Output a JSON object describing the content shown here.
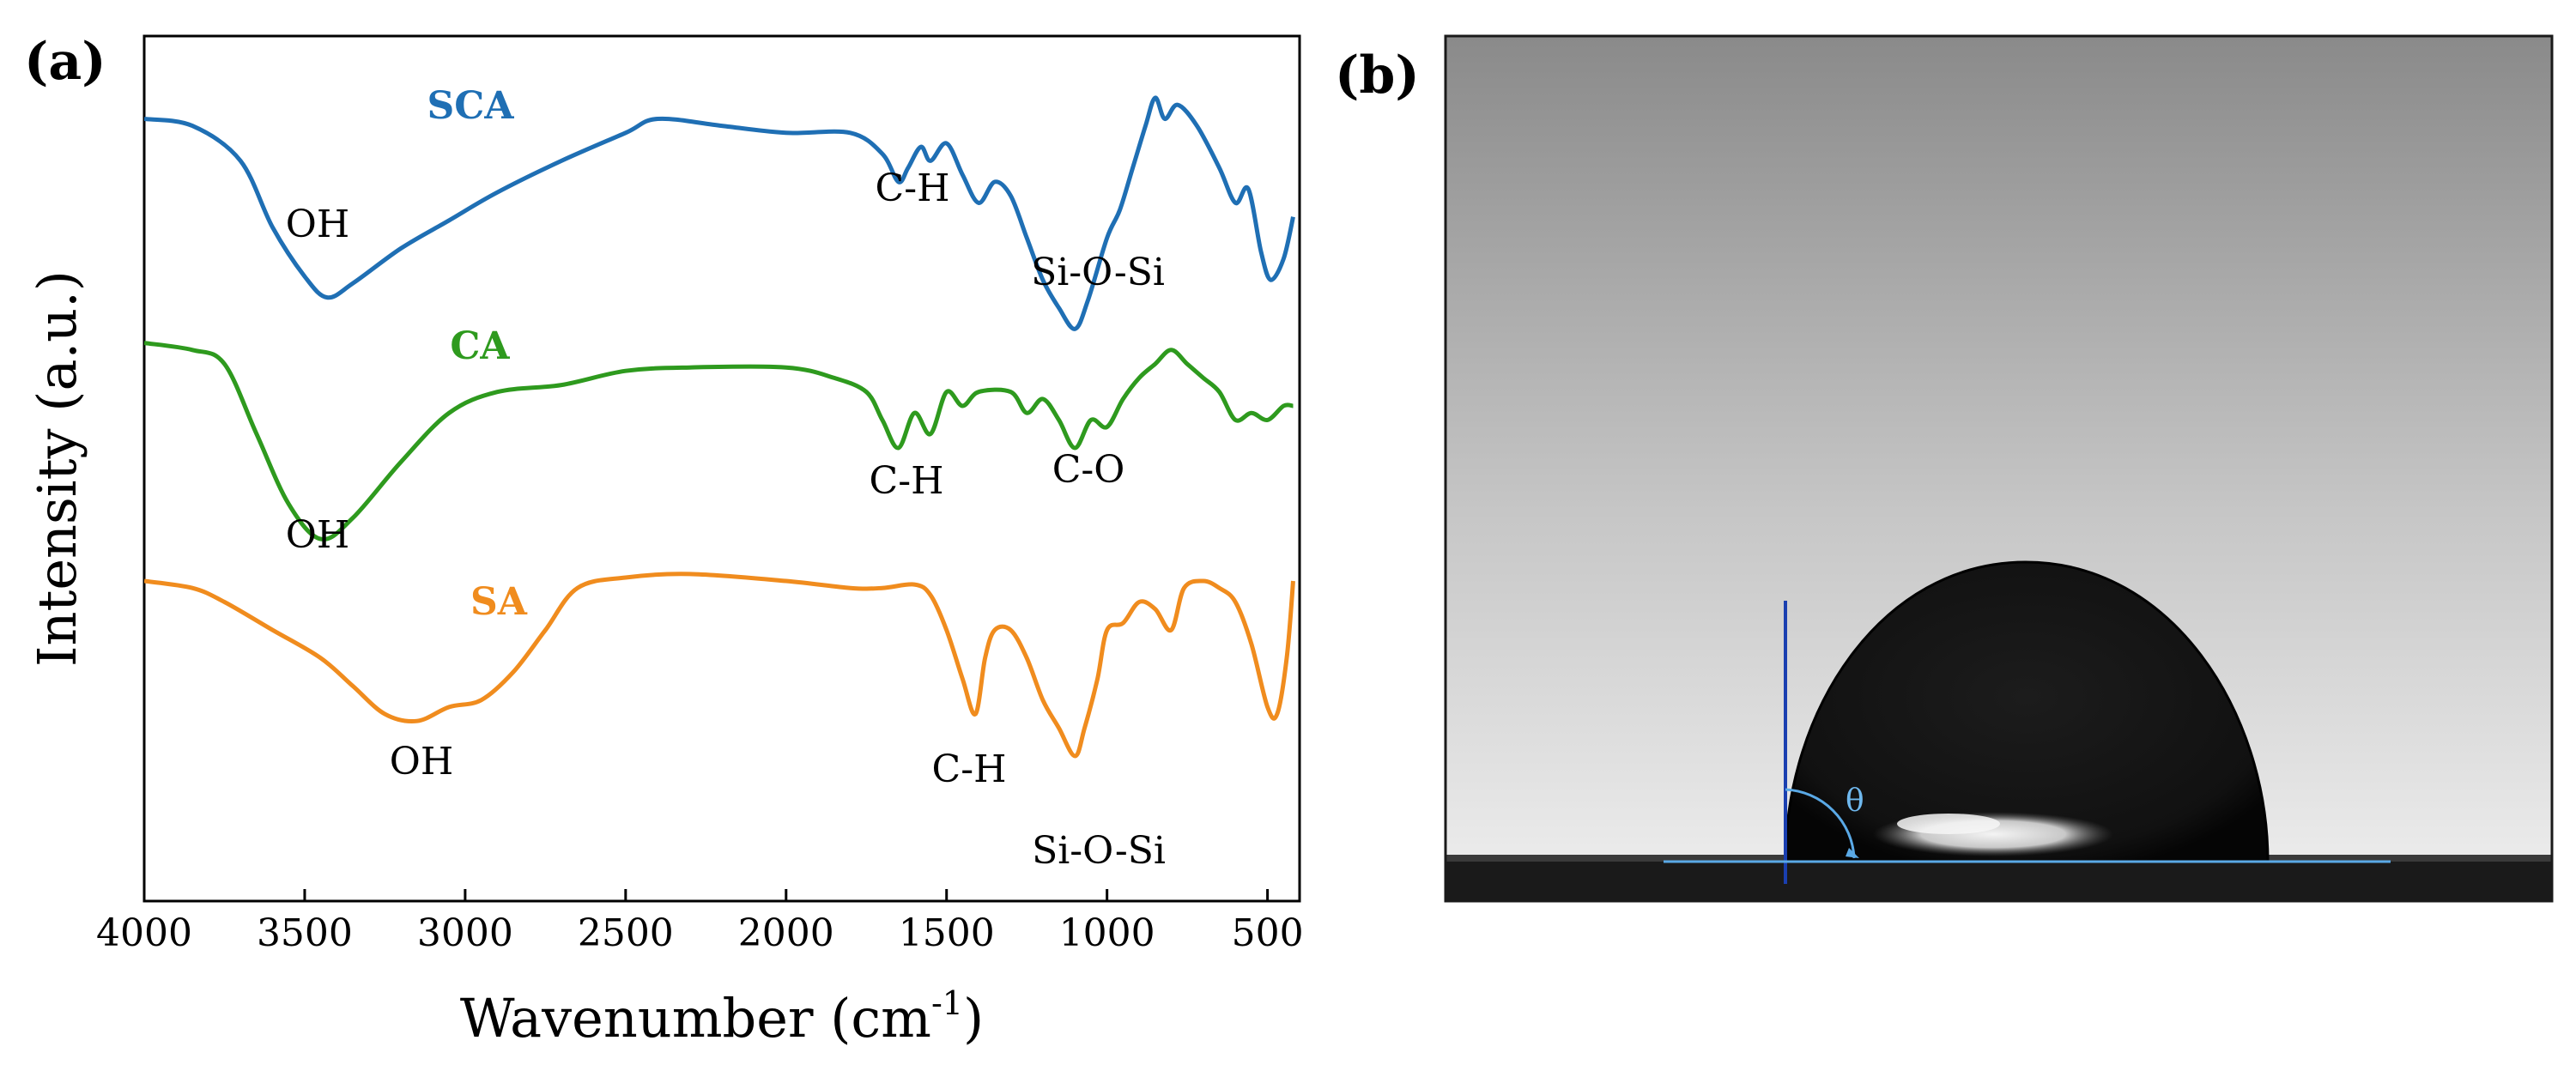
{
  "panel_a": {
    "label": "(a)",
    "chart_data": {
      "type": "line",
      "title": "",
      "xlabel_main": "Wavenumber (cm",
      "xlabel_sup": "-1",
      "xlabel_close": ")",
      "ylabel": "Intensity (a.u.)",
      "xlim": [
        4000,
        400
      ],
      "x_ticks": [
        "4000",
        "3500",
        "3000",
        "2500",
        "2000",
        "1500",
        "1000",
        "500"
      ],
      "x_tick_values": [
        4000,
        3500,
        3000,
        2500,
        2000,
        1500,
        1000,
        500
      ],
      "yaxis_tick_labels": false,
      "series": [
        {
          "name": "SCA",
          "color": "#1f6fb4",
          "points": [
            [
              4000,
              0.03
            ],
            [
              3850,
              0.04
            ],
            [
              3700,
              0.09
            ],
            [
              3600,
              0.185
            ],
            [
              3500,
              0.255
            ],
            [
              3430,
              0.285
            ],
            [
              3350,
              0.265
            ],
            [
              3200,
              0.215
            ],
            [
              3050,
              0.175
            ],
            [
              2900,
              0.135
            ],
            [
              2700,
              0.09
            ],
            [
              2500,
              0.05
            ],
            [
              2400,
              0.03
            ],
            [
              2200,
              0.04
            ],
            [
              2000,
              0.05
            ],
            [
              1800,
              0.05
            ],
            [
              1700,
              0.08
            ],
            [
              1650,
              0.12
            ],
            [
              1620,
              0.1
            ],
            [
              1580,
              0.07
            ],
            [
              1550,
              0.09
            ],
            [
              1500,
              0.065
            ],
            [
              1450,
              0.11
            ],
            [
              1400,
              0.15
            ],
            [
              1350,
              0.12
            ],
            [
              1300,
              0.14
            ],
            [
              1250,
              0.2
            ],
            [
              1200,
              0.26
            ],
            [
              1150,
              0.3
            ],
            [
              1100,
              0.33
            ],
            [
              1060,
              0.29
            ],
            [
              1000,
              0.2
            ],
            [
              960,
              0.16
            ],
            [
              920,
              0.1
            ],
            [
              880,
              0.04
            ],
            [
              850,
              0.0
            ],
            [
              820,
              0.03
            ],
            [
              780,
              0.01
            ],
            [
              720,
              0.04
            ],
            [
              650,
              0.1
            ],
            [
              600,
              0.15
            ],
            [
              560,
              0.13
            ],
            [
              520,
              0.22
            ],
            [
              490,
              0.26
            ],
            [
              450,
              0.23
            ],
            [
              420,
              0.17
            ]
          ]
        },
        {
          "name": "CA",
          "color": "#2e9a1e",
          "points": [
            [
              4000,
              0.35
            ],
            [
              3850,
              0.36
            ],
            [
              3750,
              0.38
            ],
            [
              3650,
              0.48
            ],
            [
              3550,
              0.58
            ],
            [
              3450,
              0.63
            ],
            [
              3350,
              0.6
            ],
            [
              3200,
              0.52
            ],
            [
              3050,
              0.45
            ],
            [
              2900,
              0.42
            ],
            [
              2700,
              0.41
            ],
            [
              2500,
              0.39
            ],
            [
              2300,
              0.385
            ],
            [
              2000,
              0.385
            ],
            [
              1850,
              0.4
            ],
            [
              1750,
              0.42
            ],
            [
              1700,
              0.46
            ],
            [
              1650,
              0.5
            ],
            [
              1600,
              0.45
            ],
            [
              1550,
              0.48
            ],
            [
              1500,
              0.42
            ],
            [
              1450,
              0.44
            ],
            [
              1400,
              0.42
            ],
            [
              1300,
              0.42
            ],
            [
              1250,
              0.45
            ],
            [
              1200,
              0.43
            ],
            [
              1150,
              0.46
            ],
            [
              1100,
              0.5
            ],
            [
              1050,
              0.46
            ],
            [
              1000,
              0.47
            ],
            [
              950,
              0.43
            ],
            [
              900,
              0.4
            ],
            [
              850,
              0.38
            ],
            [
              800,
              0.36
            ],
            [
              750,
              0.38
            ],
            [
              700,
              0.4
            ],
            [
              650,
              0.42
            ],
            [
              600,
              0.46
            ],
            [
              550,
              0.45
            ],
            [
              500,
              0.46
            ],
            [
              450,
              0.44
            ],
            [
              420,
              0.44
            ]
          ]
        },
        {
          "name": "SA",
          "color": "#f08c1e",
          "points": [
            [
              4000,
              0.69
            ],
            [
              3850,
              0.7
            ],
            [
              3750,
              0.72
            ],
            [
              3600,
              0.76
            ],
            [
              3450,
              0.8
            ],
            [
              3350,
              0.84
            ],
            [
              3250,
              0.88
            ],
            [
              3150,
              0.89
            ],
            [
              3050,
              0.87
            ],
            [
              2950,
              0.86
            ],
            [
              2850,
              0.82
            ],
            [
              2750,
              0.76
            ],
            [
              2650,
              0.7
            ],
            [
              2500,
              0.685
            ],
            [
              2300,
              0.68
            ],
            [
              2000,
              0.69
            ],
            [
              1800,
              0.7
            ],
            [
              1700,
              0.7
            ],
            [
              1600,
              0.695
            ],
            [
              1550,
              0.71
            ],
            [
              1500,
              0.76
            ],
            [
              1450,
              0.83
            ],
            [
              1410,
              0.88
            ],
            [
              1380,
              0.8
            ],
            [
              1350,
              0.76
            ],
            [
              1300,
              0.76
            ],
            [
              1250,
              0.8
            ],
            [
              1200,
              0.86
            ],
            [
              1150,
              0.9
            ],
            [
              1100,
              0.94
            ],
            [
              1070,
              0.9
            ],
            [
              1030,
              0.83
            ],
            [
              1000,
              0.76
            ],
            [
              950,
              0.75
            ],
            [
              900,
              0.72
            ],
            [
              850,
              0.73
            ],
            [
              800,
              0.76
            ],
            [
              760,
              0.7
            ],
            [
              700,
              0.69
            ],
            [
              650,
              0.7
            ],
            [
              600,
              0.72
            ],
            [
              550,
              0.78
            ],
            [
              500,
              0.87
            ],
            [
              470,
              0.88
            ],
            [
              440,
              0.8
            ],
            [
              420,
              0.69
            ]
          ]
        }
      ],
      "series_labels": [
        "SCA",
        "CA",
        "SA"
      ],
      "annotations": [
        "OH",
        "C-H",
        "Si-O-Si",
        "OH",
        "C-H",
        "C-O",
        "OH",
        "C-H",
        "Si-O-Si"
      ]
    }
  },
  "panel_b": {
    "label": "(b)",
    "angle_symbol": "θ"
  },
  "colors": {
    "sca": "#1f6fb4",
    "ca": "#2e9a1e",
    "sa": "#f08c1e",
    "axis": "#000000",
    "baseline": "#5aa9e6",
    "needle": "#1a3fb0"
  }
}
